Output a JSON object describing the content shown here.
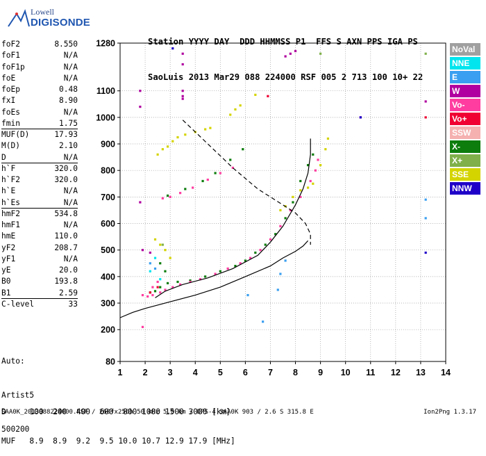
{
  "logo": {
    "line1": "Lowell",
    "line2": "DIGISONDE"
  },
  "header": {
    "line1": "Station YYYY DAY  DDD HHMMSS P1  FFS S AXN PPS IGA PS",
    "line2": "SaoLuis 2013 Mar29 088 224000 RSF 005 2 713 100 10+ 22"
  },
  "params": [
    {
      "label": "foF2",
      "value": "8.550"
    },
    {
      "label": "foF1",
      "value": "N/A"
    },
    {
      "label": "foF1p",
      "value": "N/A"
    },
    {
      "label": "foE",
      "value": "N/A"
    },
    {
      "label": "foEp",
      "value": "0.48"
    },
    {
      "label": "fxI",
      "value": "8.90"
    },
    {
      "label": "foEs",
      "value": "N/A"
    },
    {
      "label": "fmin",
      "value": "1.75"
    },
    {
      "label": "MUF(D)",
      "value": "17.93"
    },
    {
      "label": "M(D)",
      "value": "2.10"
    },
    {
      "label": "D",
      "value": "N/A"
    },
    {
      "label": "h`F",
      "value": "320.0"
    },
    {
      "label": "h`F2",
      "value": "320.0"
    },
    {
      "label": "h`E",
      "value": "N/A"
    },
    {
      "label": "h`Es",
      "value": "N/A"
    },
    {
      "label": "hmF2",
      "value": "534.8"
    },
    {
      "label": "hmF1",
      "value": "N/A"
    },
    {
      "label": "hmE",
      "value": "110.0"
    },
    {
      "label": "yF2",
      "value": "208.7"
    },
    {
      "label": "yF1",
      "value": "N/A"
    },
    {
      "label": "yE",
      "value": "20.0"
    },
    {
      "label": "B0",
      "value": "193.8"
    },
    {
      "label": "B1",
      "value": "2.59"
    },
    {
      "label": "C-level",
      "value": "33"
    }
  ],
  "auto": {
    "line1": "Auto:",
    "line2": "Artist5",
    "line3": "500200"
  },
  "legend": [
    {
      "label": "NoVal",
      "color": "#a0a0a0"
    },
    {
      "label": "NNE",
      "color": "#00e5ee"
    },
    {
      "label": "E",
      "color": "#3a9ff0"
    },
    {
      "label": "W",
      "color": "#b0009f"
    },
    {
      "label": "Vo-",
      "color": "#ff3da0"
    },
    {
      "label": "Vo+",
      "color": "#f00032"
    },
    {
      "label": "SSW",
      "color": "#f5b0b0"
    },
    {
      "label": "X-",
      "color": "#0d7d0d"
    },
    {
      "label": "X+",
      "color": "#7fb04a"
    },
    {
      "label": "SSE",
      "color": "#d4d400"
    },
    {
      "label": "NNW",
      "color": "#1f00c8"
    }
  ],
  "table": {
    "row1": "D     100  200  400  600  800 1000 1500 3000 [km]",
    "row2": "MUF   8.9  8.9  9.2  9.5 10.0 10.7 12.9 17.9 [MHz]"
  },
  "footer": {
    "left": "SAA0K_2013088224000.RSF / 260fx256h 50 kHz 5.0 km / DPS-4 SAA0K 903 / 2.6 S 315.8 E",
    "right": "Ion2Png 1.3.17"
  },
  "chart_data": {
    "type": "scatter",
    "xlim": [
      1,
      14
    ],
    "ylim": [
      80,
      1280
    ],
    "x_ticks": [
      "1",
      "2",
      "3",
      "4",
      "5",
      "6",
      "7",
      "8",
      "9",
      "10",
      "11",
      "12",
      "13",
      "14"
    ],
    "y_ticks": [
      {
        "v": 80,
        "label": "80"
      },
      {
        "v": 200,
        "label": "200"
      },
      {
        "v": 300,
        "label": "300"
      },
      {
        "v": 400,
        "label": "400"
      },
      {
        "v": 500,
        "label": "500"
      },
      {
        "v": 600,
        "label": "600"
      },
      {
        "v": 700,
        "label": "700"
      },
      {
        "v": 800,
        "label": "800"
      },
      {
        "v": 900,
        "label": "900"
      },
      {
        "v": 1000,
        "label": "1000"
      },
      {
        "v": 1100,
        "label": "1100"
      },
      {
        "v": 1280,
        "label": "1280"
      }
    ],
    "grid": true,
    "series": [
      {
        "name": "SSE",
        "color": "#d4d400",
        "points": [
          [
            2.5,
            860
          ],
          [
            2.7,
            880
          ],
          [
            2.9,
            890
          ],
          [
            3.1,
            910
          ],
          [
            3.3,
            925
          ],
          [
            3.6,
            935
          ],
          [
            4.0,
            945
          ],
          [
            4.4,
            955
          ],
          [
            4.6,
            960
          ],
          [
            5.4,
            1010
          ],
          [
            5.6,
            1030
          ],
          [
            5.8,
            1045
          ],
          [
            6.4,
            1085
          ],
          [
            7.4,
            650
          ],
          [
            7.6,
            665
          ],
          [
            7.9,
            700
          ],
          [
            8.2,
            725
          ],
          [
            8.5,
            735
          ],
          [
            8.7,
            750
          ],
          [
            9.0,
            820
          ],
          [
            9.2,
            880
          ],
          [
            9.3,
            920
          ],
          [
            2.6,
            520
          ],
          [
            2.8,
            500
          ],
          [
            3.0,
            470
          ],
          [
            2.4,
            540
          ]
        ]
      },
      {
        "name": "X-",
        "color": "#0d7d0d",
        "points": [
          [
            2.2,
            340
          ],
          [
            2.4,
            345
          ],
          [
            2.6,
            360
          ],
          [
            2.9,
            375
          ],
          [
            3.3,
            380
          ],
          [
            3.8,
            385
          ],
          [
            4.4,
            400
          ],
          [
            5.0,
            420
          ],
          [
            5.6,
            440
          ],
          [
            6.0,
            460
          ],
          [
            6.4,
            490
          ],
          [
            6.8,
            520
          ],
          [
            7.2,
            560
          ],
          [
            7.6,
            620
          ],
          [
            7.9,
            680
          ],
          [
            8.2,
            760
          ],
          [
            8.5,
            820
          ],
          [
            8.7,
            860
          ],
          [
            2.9,
            705
          ],
          [
            3.6,
            730
          ],
          [
            4.3,
            760
          ],
          [
            4.8,
            790
          ],
          [
            5.4,
            840
          ],
          [
            5.9,
            880
          ],
          [
            2.8,
            420
          ],
          [
            2.6,
            450
          ]
        ]
      },
      {
        "name": "Vo-",
        "color": "#ff3da0",
        "points": [
          [
            1.9,
            330
          ],
          [
            2.1,
            325
          ],
          [
            2.3,
            330
          ],
          [
            2.6,
            340
          ],
          [
            2.8,
            350
          ],
          [
            3.1,
            360
          ],
          [
            3.4,
            370
          ],
          [
            3.8,
            380
          ],
          [
            4.2,
            390
          ],
          [
            4.8,
            410
          ],
          [
            5.3,
            430
          ],
          [
            5.8,
            450
          ],
          [
            6.2,
            470
          ],
          [
            6.6,
            500
          ],
          [
            7.0,
            540
          ],
          [
            7.4,
            590
          ],
          [
            7.8,
            650
          ],
          [
            8.2,
            700
          ],
          [
            8.6,
            760
          ],
          [
            8.8,
            800
          ],
          [
            8.9,
            840
          ],
          [
            2.7,
            695
          ],
          [
            3.0,
            700
          ],
          [
            3.4,
            715
          ],
          [
            3.9,
            735
          ],
          [
            4.5,
            765
          ],
          [
            5.0,
            790
          ],
          [
            5.5,
            810
          ],
          [
            2.5,
            380
          ],
          [
            2.3,
            360
          ],
          [
            1.9,
            210
          ]
        ]
      },
      {
        "name": "W",
        "color": "#b0009f",
        "points": [
          [
            1.8,
            1100
          ],
          [
            1.8,
            1040
          ],
          [
            3.5,
            1240
          ],
          [
            3.5,
            1200
          ],
          [
            3.5,
            1100
          ],
          [
            3.5,
            1080
          ],
          [
            3.5,
            1070
          ],
          [
            7.6,
            1230
          ],
          [
            7.8,
            1240
          ],
          [
            8.0,
            1250
          ],
          [
            10.6,
            1000
          ],
          [
            13.2,
            1060
          ],
          [
            1.8,
            680
          ],
          [
            1.9,
            500
          ],
          [
            2.2,
            490
          ]
        ]
      },
      {
        "name": "E",
        "color": "#3a9ff0",
        "points": [
          [
            2.2,
            450
          ],
          [
            2.4,
            430
          ],
          [
            13.2,
            690
          ],
          [
            13.2,
            620
          ],
          [
            6.1,
            330
          ],
          [
            6.7,
            230
          ],
          [
            7.3,
            350
          ],
          [
            7.4,
            410
          ],
          [
            7.6,
            460
          ]
        ]
      },
      {
        "name": "X+",
        "color": "#7fb04a",
        "points": [
          [
            13.2,
            1240
          ],
          [
            9.0,
            1240
          ],
          [
            2.7,
            520
          ]
        ]
      },
      {
        "name": "NNW",
        "color": "#1f00c8",
        "points": [
          [
            13.2,
            490
          ],
          [
            3.1,
            1260
          ],
          [
            10.6,
            1000
          ]
        ]
      },
      {
        "name": "NNE",
        "color": "#00e5ee",
        "points": [
          [
            2.4,
            470
          ],
          [
            2.2,
            420
          ],
          [
            2.6,
            390
          ]
        ]
      },
      {
        "name": "Vo+",
        "color": "#f00032",
        "points": [
          [
            6.9,
            1080
          ],
          [
            13.2,
            1000
          ],
          [
            2.5,
            360
          ],
          [
            2.2,
            340
          ]
        ]
      }
    ],
    "lines": [
      {
        "name": "profile",
        "style": "solid",
        "points": [
          [
            1.0,
            245
          ],
          [
            1.5,
            265
          ],
          [
            2.0,
            280
          ],
          [
            3.0,
            305
          ],
          [
            4.0,
            330
          ],
          [
            5.0,
            360
          ],
          [
            6.0,
            400
          ],
          [
            7.0,
            440
          ],
          [
            7.5,
            470
          ],
          [
            8.0,
            495
          ],
          [
            8.3,
            515
          ],
          [
            8.5,
            535
          ]
        ]
      },
      {
        "name": "trace",
        "style": "solid",
        "points": [
          [
            2.4,
            320
          ],
          [
            2.8,
            345
          ],
          [
            3.5,
            370
          ],
          [
            4.5,
            395
          ],
          [
            5.5,
            430
          ],
          [
            6.5,
            480
          ],
          [
            7.0,
            530
          ],
          [
            7.5,
            590
          ],
          [
            8.0,
            670
          ],
          [
            8.3,
            730
          ],
          [
            8.5,
            790
          ],
          [
            8.6,
            860
          ],
          [
            8.6,
            920
          ]
        ]
      },
      {
        "name": "muf",
        "style": "dashed",
        "points": [
          [
            3.5,
            990
          ],
          [
            4.5,
            900
          ],
          [
            5.5,
            810
          ],
          [
            6.5,
            730
          ],
          [
            7.5,
            670
          ],
          [
            8.0,
            640
          ],
          [
            8.4,
            600
          ],
          [
            8.6,
            560
          ],
          [
            8.6,
            520
          ]
        ]
      }
    ]
  }
}
